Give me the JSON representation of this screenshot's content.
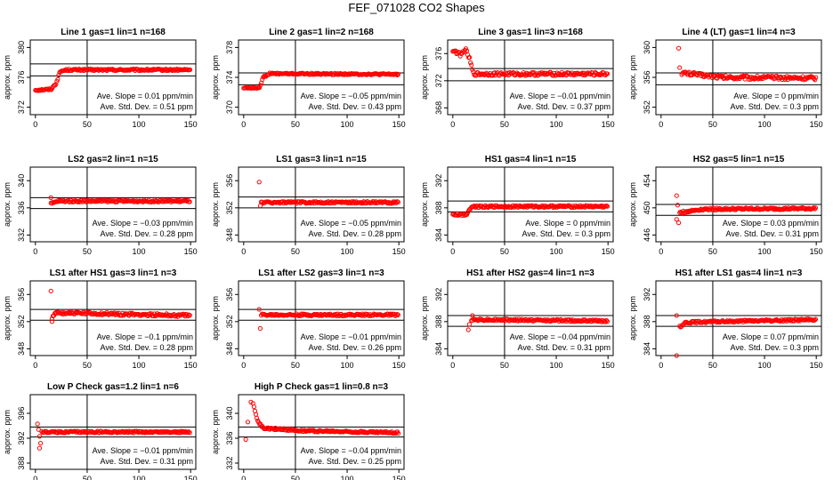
{
  "page_title": "FEF_071028  CO2 Shapes",
  "style": {
    "point_color": "#ff0000",
    "line_color": "#000000"
  },
  "chart_data": [
    {
      "type": "scatter",
      "title": "Line 1 gas=1 lin=1 n=168",
      "ylabel": "approx. ppm",
      "xlim": [
        -5,
        155
      ],
      "ylim": [
        371,
        381
      ],
      "xticks": [
        0,
        50,
        100,
        150
      ],
      "yticks": [
        372,
        376,
        380
      ],
      "hlines": [
        376.2,
        377.8
      ],
      "vline": 50,
      "slope_text": "Ave. Slope =  0.01  ppm/min",
      "sd_text": "Ave. Std. Dev. =  0.51  ppm",
      "segments": [
        [
          0,
          374.3
        ],
        [
          15,
          374.4
        ],
        [
          20,
          375.2
        ],
        [
          24,
          376.8
        ],
        [
          30,
          377.0
        ],
        [
          150,
          377.0
        ]
      ],
      "noise": 0.12,
      "outliers": []
    },
    {
      "type": "scatter",
      "title": "Line 2 gas=1 lin=2 n=168",
      "ylabel": "approx. ppm",
      "xlim": [
        -5,
        155
      ],
      "ylim": [
        369,
        379
      ],
      "xticks": [
        0,
        50,
        100,
        150
      ],
      "yticks": [
        370,
        374,
        378
      ],
      "hlines": [
        373.0,
        374.6
      ],
      "vline": 50,
      "slope_text": "Ave. Slope =  −0.05  ppm/min",
      "sd_text": "Ave. Std. Dev. =  0.43  ppm",
      "segments": [
        [
          0,
          372.6
        ],
        [
          15,
          372.6
        ],
        [
          19,
          374.0
        ],
        [
          25,
          374.5
        ],
        [
          150,
          374.4
        ]
      ],
      "noise": 0.1,
      "outliers": []
    },
    {
      "type": "scatter",
      "title": "Line 3 gas=1 lin=3 n=168",
      "ylabel": "approx. ppm",
      "xlim": [
        -5,
        155
      ],
      "ylim": [
        367,
        378
      ],
      "xticks": [
        0,
        50,
        100,
        150
      ],
      "yticks": [
        368,
        372,
        376
      ],
      "hlines": [
        372.0,
        373.8
      ],
      "vline": 50,
      "slope_text": "Ave. Slope =  −0.01  ppm/min",
      "sd_text": "Ave. Std. Dev. =  0.37  ppm",
      "segments": [
        [
          0,
          376.5
        ],
        [
          8,
          375.8
        ],
        [
          12,
          376.7
        ],
        [
          16,
          375.3
        ],
        [
          20,
          373.0
        ],
        [
          150,
          373.0
        ]
      ],
      "noise": 0.25,
      "outliers": []
    },
    {
      "type": "scatter",
      "title": "Line 4 (LT) gas=1 lin=4 n=3",
      "ylabel": "approx. ppm",
      "xlim": [
        -5,
        155
      ],
      "ylim": [
        351,
        361
      ],
      "xticks": [
        0,
        50,
        100,
        150
      ],
      "yticks": [
        352,
        356,
        360
      ],
      "hlines": [
        355.0,
        356.6
      ],
      "vline": 50,
      "slope_text": "Ave. Slope =  0  ppm/min",
      "sd_text": "Ave. Std. Dev. =  0.3  ppm",
      "segments": [
        [
          20,
          356.6
        ],
        [
          60,
          356.0
        ],
        [
          150,
          355.9
        ]
      ],
      "noise": 0.25,
      "outliers": [
        [
          17,
          359.9
        ],
        [
          18,
          357.3
        ]
      ]
    },
    {
      "type": "scatter",
      "title": "LS2 gas=2 lin=1 n=15",
      "ylabel": "approx. ppm",
      "xlim": [
        -5,
        155
      ],
      "ylim": [
        331,
        342
      ],
      "xticks": [
        0,
        50,
        100,
        150
      ],
      "yticks": [
        332,
        336,
        340
      ],
      "hlines": [
        335.9,
        337.5
      ],
      "vline": 50,
      "slope_text": "Ave. Slope =  −0.03  ppm/min",
      "sd_text": "Ave. Std. Dev. =  0.28  ppm",
      "segments": [
        [
          15,
          336.6
        ],
        [
          22,
          337.0
        ],
        [
          150,
          337.0
        ]
      ],
      "noise": 0.15,
      "outliers": [
        [
          15,
          337.5
        ]
      ]
    },
    {
      "type": "scatter",
      "title": "LS1 gas=3 lin=1 n=15",
      "ylabel": "approx. ppm",
      "xlim": [
        -5,
        155
      ],
      "ylim": [
        347,
        358
      ],
      "xticks": [
        0,
        50,
        100,
        150
      ],
      "yticks": [
        348,
        352,
        356
      ],
      "hlines": [
        352.0,
        353.6
      ],
      "vline": 50,
      "slope_text": "Ave. Slope =  −0.05  ppm/min",
      "sd_text": "Ave. Std. Dev. =  0.28  ppm",
      "segments": [
        [
          17,
          352.8
        ],
        [
          150,
          352.8
        ]
      ],
      "noise": 0.15,
      "outliers": [
        [
          15,
          355.8
        ],
        [
          16,
          352.3
        ]
      ]
    },
    {
      "type": "scatter",
      "title": "HS1 gas=4 lin=1 n=15",
      "ylabel": "approx. ppm",
      "xlim": [
        -5,
        155
      ],
      "ylim": [
        383,
        394
      ],
      "xticks": [
        0,
        50,
        100,
        150
      ],
      "yticks": [
        384,
        388,
        392
      ],
      "hlines": [
        387.4,
        389.0
      ],
      "vline": 50,
      "slope_text": "Ave. Slope =  0  ppm/min",
      "sd_text": "Ave. Std. Dev. =  0.3  ppm",
      "segments": [
        [
          0,
          387.0
        ],
        [
          13,
          387.0
        ],
        [
          18,
          388.2
        ],
        [
          150,
          388.2
        ]
      ],
      "noise": 0.15,
      "outliers": []
    },
    {
      "type": "scatter",
      "title": "HS2 gas=5 lin=1 n=15",
      "ylabel": "approx. ppm",
      "xlim": [
        -5,
        155
      ],
      "ylim": [
        445,
        456
      ],
      "xticks": [
        0,
        50,
        100,
        150
      ],
      "yticks": [
        446,
        450,
        454
      ],
      "hlines": [
        448.9,
        450.5
      ],
      "vline": 50,
      "slope_text": "Ave. Slope =  0.03  ppm/min",
      "sd_text": "Ave. Std. Dev. =  0.31  ppm",
      "segments": [
        [
          18,
          449.3
        ],
        [
          40,
          449.8
        ],
        [
          150,
          449.9
        ]
      ],
      "noise": 0.15,
      "outliers": [
        [
          15,
          451.8
        ],
        [
          16,
          450.4
        ],
        [
          17,
          447.8
        ],
        [
          15,
          448.3
        ]
      ]
    },
    {
      "type": "scatter",
      "title": "LS1 after HS1 gas=3 lin=1 n=3",
      "ylabel": "approx. ppm",
      "xlim": [
        -5,
        155
      ],
      "ylim": [
        347,
        358
      ],
      "xticks": [
        0,
        50,
        100,
        150
      ],
      "yticks": [
        348,
        352,
        356
      ],
      "hlines": [
        352.2,
        353.8
      ],
      "vline": 50,
      "slope_text": "Ave. Slope =  −0.1  ppm/min",
      "sd_text": "Ave. Std. Dev. =  0.28  ppm",
      "segments": [
        [
          16,
          352.5
        ],
        [
          20,
          353.3
        ],
        [
          150,
          352.9
        ]
      ],
      "noise": 0.2,
      "outliers": [
        [
          15,
          356.5
        ],
        [
          16,
          352.0
        ]
      ]
    },
    {
      "type": "scatter",
      "title": "LS1 after LS2 gas=3 lin=1 n=3",
      "ylabel": "approx. ppm",
      "xlim": [
        -5,
        155
      ],
      "ylim": [
        347,
        358
      ],
      "xticks": [
        0,
        50,
        100,
        150
      ],
      "yticks": [
        348,
        352,
        356
      ],
      "hlines": [
        352.2,
        353.8
      ],
      "vline": 50,
      "slope_text": "Ave. Slope =  −0.01  ppm/min",
      "sd_text": "Ave. Std. Dev. =  0.26  ppm",
      "segments": [
        [
          17,
          353.0
        ],
        [
          150,
          353.0
        ]
      ],
      "noise": 0.15,
      "outliers": [
        [
          15,
          353.8
        ],
        [
          16,
          351.0
        ]
      ]
    },
    {
      "type": "scatter",
      "title": "HS1 after HS2 gas=4 lin=1 n=3",
      "ylabel": "approx. ppm",
      "xlim": [
        -5,
        155
      ],
      "ylim": [
        383,
        394
      ],
      "xticks": [
        0,
        50,
        100,
        150
      ],
      "yticks": [
        384,
        388,
        392
      ],
      "hlines": [
        387.3,
        388.9
      ],
      "vline": 50,
      "slope_text": "Ave. Slope =  −0.04  ppm/min",
      "sd_text": "Ave. Std. Dev. =  0.31  ppm",
      "segments": [
        [
          18,
          388.3
        ],
        [
          150,
          388.1
        ]
      ],
      "noise": 0.15,
      "outliers": [
        [
          15,
          386.8
        ],
        [
          16,
          387.6
        ],
        [
          19,
          388.9
        ]
      ]
    },
    {
      "type": "scatter",
      "title": "HS1 after LS1 gas=4 lin=1 n=3",
      "ylabel": "approx. ppm",
      "xlim": [
        -5,
        155
      ],
      "ylim": [
        383,
        394
      ],
      "xticks": [
        0,
        50,
        100,
        150
      ],
      "yticks": [
        384,
        388,
        392
      ],
      "hlines": [
        387.3,
        388.9
      ],
      "vline": 50,
      "slope_text": "Ave. Slope =  0.07  ppm/min",
      "sd_text": "Ave. Std. Dev. =  0.3  ppm",
      "segments": [
        [
          18,
          387.2
        ],
        [
          24,
          387.9
        ],
        [
          150,
          388.3
        ]
      ],
      "noise": 0.15,
      "outliers": [
        [
          15,
          388.9
        ],
        [
          15,
          383.0
        ]
      ]
    },
    {
      "type": "scatter",
      "title": "Low P Check gas=1.2 lin=1 n=6",
      "ylabel": "approx. ppm",
      "xlim": [
        -5,
        155
      ],
      "ylim": [
        387,
        399
      ],
      "xticks": [
        0,
        50,
        100,
        150
      ],
      "yticks": [
        388,
        392,
        396
      ],
      "hlines": [
        392.2,
        393.8
      ],
      "vline": 50,
      "slope_text": "Ave. Slope =  −0.01  ppm/min",
      "sd_text": "Ave. Std. Dev. =  0.31  ppm",
      "segments": [
        [
          6,
          393.0
        ],
        [
          150,
          393.0
        ]
      ],
      "noise": 0.15,
      "outliers": [
        [
          2,
          394.3
        ],
        [
          3,
          393.4
        ],
        [
          4,
          392.3
        ],
        [
          4,
          390.4
        ],
        [
          5,
          391.2
        ]
      ]
    },
    {
      "type": "scatter",
      "title": "High P Check gas=1 lin=0.8 n=3",
      "ylabel": "approx. ppm",
      "xlim": [
        -5,
        155
      ],
      "ylim": [
        331,
        343
      ],
      "xticks": [
        0,
        50,
        100,
        150
      ],
      "yticks": [
        332,
        336,
        340
      ],
      "hlines": [
        336.2,
        337.8
      ],
      "vline": 50,
      "slope_text": "Ave. Slope =  −0.04  ppm/min",
      "sd_text": "Ave. Std. Dev. =  0.25  ppm",
      "segments": [
        [
          10,
          341.0
        ],
        [
          14,
          338.5
        ],
        [
          20,
          337.6
        ],
        [
          60,
          337.2
        ],
        [
          150,
          336.9
        ]
      ],
      "noise": 0.15,
      "outliers": [
        [
          2,
          335.8
        ],
        [
          4,
          338.6
        ],
        [
          7,
          341.8
        ],
        [
          9,
          341.6
        ]
      ]
    }
  ]
}
